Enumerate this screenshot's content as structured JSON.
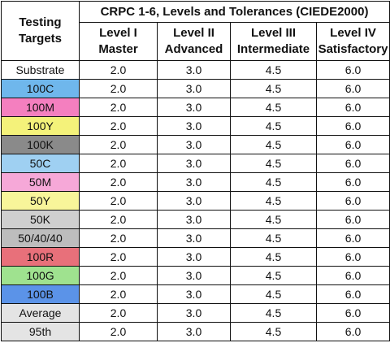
{
  "header": {
    "corner_line1": "Testing",
    "corner_line2": "Targets",
    "title": "CRPC 1-6, Levels and Tolerances (CIEDE2000)",
    "levels": [
      {
        "line1": "Level I",
        "line2": "Master"
      },
      {
        "line1": "Level II",
        "line2": "Advanced"
      },
      {
        "line1": "Level III",
        "line2": "Intermediate"
      },
      {
        "line1": "Level IV",
        "line2": "Satisfactory"
      }
    ]
  },
  "rows": [
    {
      "target": "Substrate",
      "color": "#ffffff",
      "values": [
        "2.0",
        "3.0",
        "4.5",
        "6.0"
      ]
    },
    {
      "target": "100C",
      "color": "#6fb7ec",
      "values": [
        "2.0",
        "3.0",
        "4.5",
        "6.0"
      ]
    },
    {
      "target": "100M",
      "color": "#f47fbf",
      "values": [
        "2.0",
        "3.0",
        "4.5",
        "6.0"
      ]
    },
    {
      "target": "100Y",
      "color": "#f4f27a",
      "values": [
        "2.0",
        "3.0",
        "4.5",
        "6.0"
      ]
    },
    {
      "target": "100K",
      "color": "#8a8a8a",
      "values": [
        "2.0",
        "3.0",
        "4.5",
        "6.0"
      ]
    },
    {
      "target": "50C",
      "color": "#9fd0f2",
      "values": [
        "2.0",
        "3.0",
        "4.5",
        "6.0"
      ]
    },
    {
      "target": "50M",
      "color": "#f6a8d8",
      "values": [
        "2.0",
        "3.0",
        "4.5",
        "6.0"
      ]
    },
    {
      "target": "50Y",
      "color": "#f8f59a",
      "values": [
        "2.0",
        "3.0",
        "4.5",
        "6.0"
      ]
    },
    {
      "target": "50K",
      "color": "#cfcfcf",
      "values": [
        "2.0",
        "3.0",
        "4.5",
        "6.0"
      ]
    },
    {
      "target": "50/40/40",
      "color": "#bdbdbd",
      "values": [
        "2.0",
        "3.0",
        "4.5",
        "6.0"
      ]
    },
    {
      "target": "100R",
      "color": "#e8707a",
      "values": [
        "2.0",
        "3.0",
        "4.5",
        "6.0"
      ]
    },
    {
      "target": "100G",
      "color": "#9fe28f",
      "values": [
        "2.0",
        "3.0",
        "4.5",
        "6.0"
      ]
    },
    {
      "target": "100B",
      "color": "#5b93e8",
      "values": [
        "2.0",
        "3.0",
        "4.5",
        "6.0"
      ]
    },
    {
      "target": "Average",
      "color": "#e4e4e4",
      "values": [
        "2.0",
        "3.0",
        "4.5",
        "6.0"
      ]
    },
    {
      "target": "95th",
      "color": "#e4e4e4",
      "values": [
        "2.0",
        "3.0",
        "4.5",
        "6.0"
      ]
    }
  ]
}
